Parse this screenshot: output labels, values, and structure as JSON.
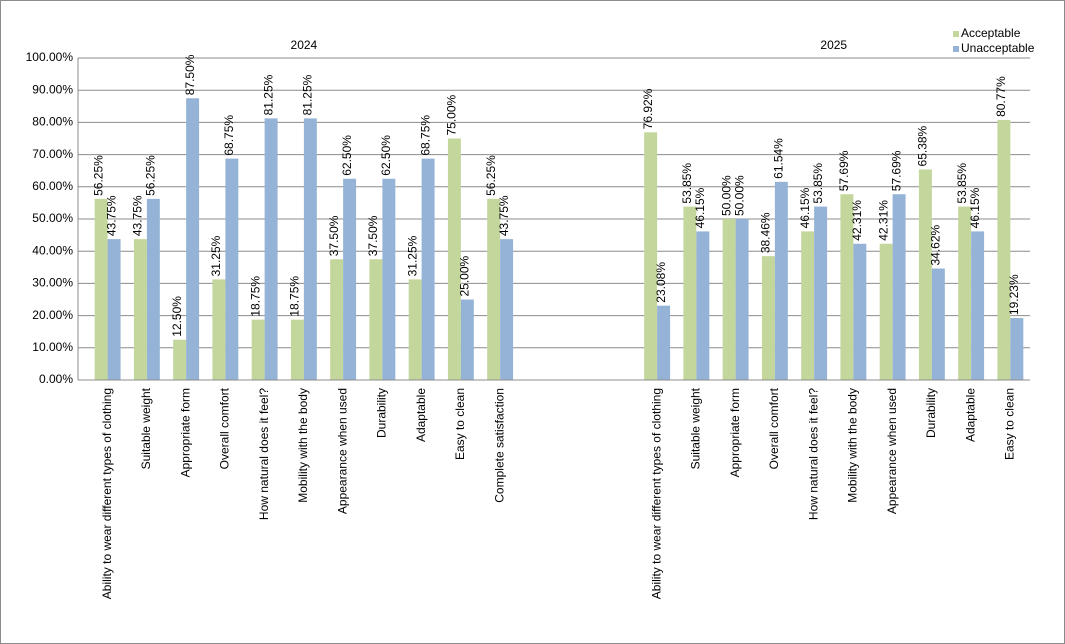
{
  "chart_data": {
    "type": "bar",
    "annotations": [
      "2024",
      "2025"
    ],
    "categories": [
      "Ability to wear different types of clothing",
      "Suitable weight",
      "Appropriate form",
      "Overall comfort",
      "How natural does it feel?",
      "Mobility with the body",
      "Appearance when used",
      "Durability",
      "Adaptable",
      "Easy to clean",
      "Complete satisfaction",
      null,
      null,
      null,
      "Ability to wear different types of clothing",
      "Suitable weight",
      "Appropriate form",
      "Overall comfort",
      "How natural does it feel?",
      "Mobility with the body",
      "Appearance when used",
      "Durability",
      "Adaptable",
      "Easy to clean"
    ],
    "series": [
      {
        "name": "Acceptable",
        "color": "#c3d69b",
        "values": [
          56.25,
          43.75,
          12.5,
          31.25,
          18.75,
          18.75,
          37.5,
          37.5,
          31.25,
          75,
          56.25,
          null,
          null,
          null,
          76.92,
          53.85,
          50,
          38.46,
          46.15,
          57.69,
          42.31,
          65.38,
          53.85,
          80.77
        ],
        "value_labels": [
          "56.25%",
          "43.75%",
          "12.50%",
          "31.25%",
          "18.75%",
          "18.75%",
          "37.50%",
          "37.50%",
          "31.25%",
          "75.00%",
          "56.25%",
          null,
          null,
          null,
          "76.92%",
          "53.85%",
          "50.00%",
          "38.46%",
          "46.15%",
          "57.69%",
          "42.31%",
          "65.38%",
          "53.85%",
          "80.77%"
        ]
      },
      {
        "name": "Unacceptable",
        "color": "#95b3d7",
        "values": [
          43.75,
          56.25,
          87.5,
          68.75,
          81.25,
          81.25,
          62.5,
          62.5,
          68.75,
          25,
          43.75,
          null,
          null,
          null,
          23.08,
          46.15,
          50,
          61.54,
          53.85,
          42.31,
          57.69,
          34.62,
          46.15,
          19.23
        ],
        "value_labels": [
          "43.75%",
          "56.25%",
          "87.50%",
          "68.75%",
          "81.25%",
          "81.25%",
          "62.50%",
          "62.50%",
          "68.75%",
          "25.00%",
          "43.75%",
          null,
          null,
          null,
          "23.08%",
          "46.15%",
          "50.00%",
          "61.54%",
          "53.85%",
          "42.31%",
          "57.69%",
          "34.62%",
          "46.15%",
          "19.23%"
        ]
      }
    ],
    "ylim": [
      0,
      100
    ],
    "yticks": [
      {
        "value": 0,
        "label": "0.00%"
      },
      {
        "value": 10,
        "label": "10.00%"
      },
      {
        "value": 20,
        "label": "20.00%"
      },
      {
        "value": 30,
        "label": "30.00%"
      },
      {
        "value": 40,
        "label": "40.00%"
      },
      {
        "value": 50,
        "label": "50.00%"
      },
      {
        "value": 60,
        "label": "60.00%"
      },
      {
        "value": 70,
        "label": "70.00%"
      },
      {
        "value": 80,
        "label": "80.00%"
      },
      {
        "value": 90,
        "label": "90.00%"
      },
      {
        "value": 100,
        "label": "100.00%"
      }
    ],
    "grid": true,
    "legend": "top-right"
  }
}
